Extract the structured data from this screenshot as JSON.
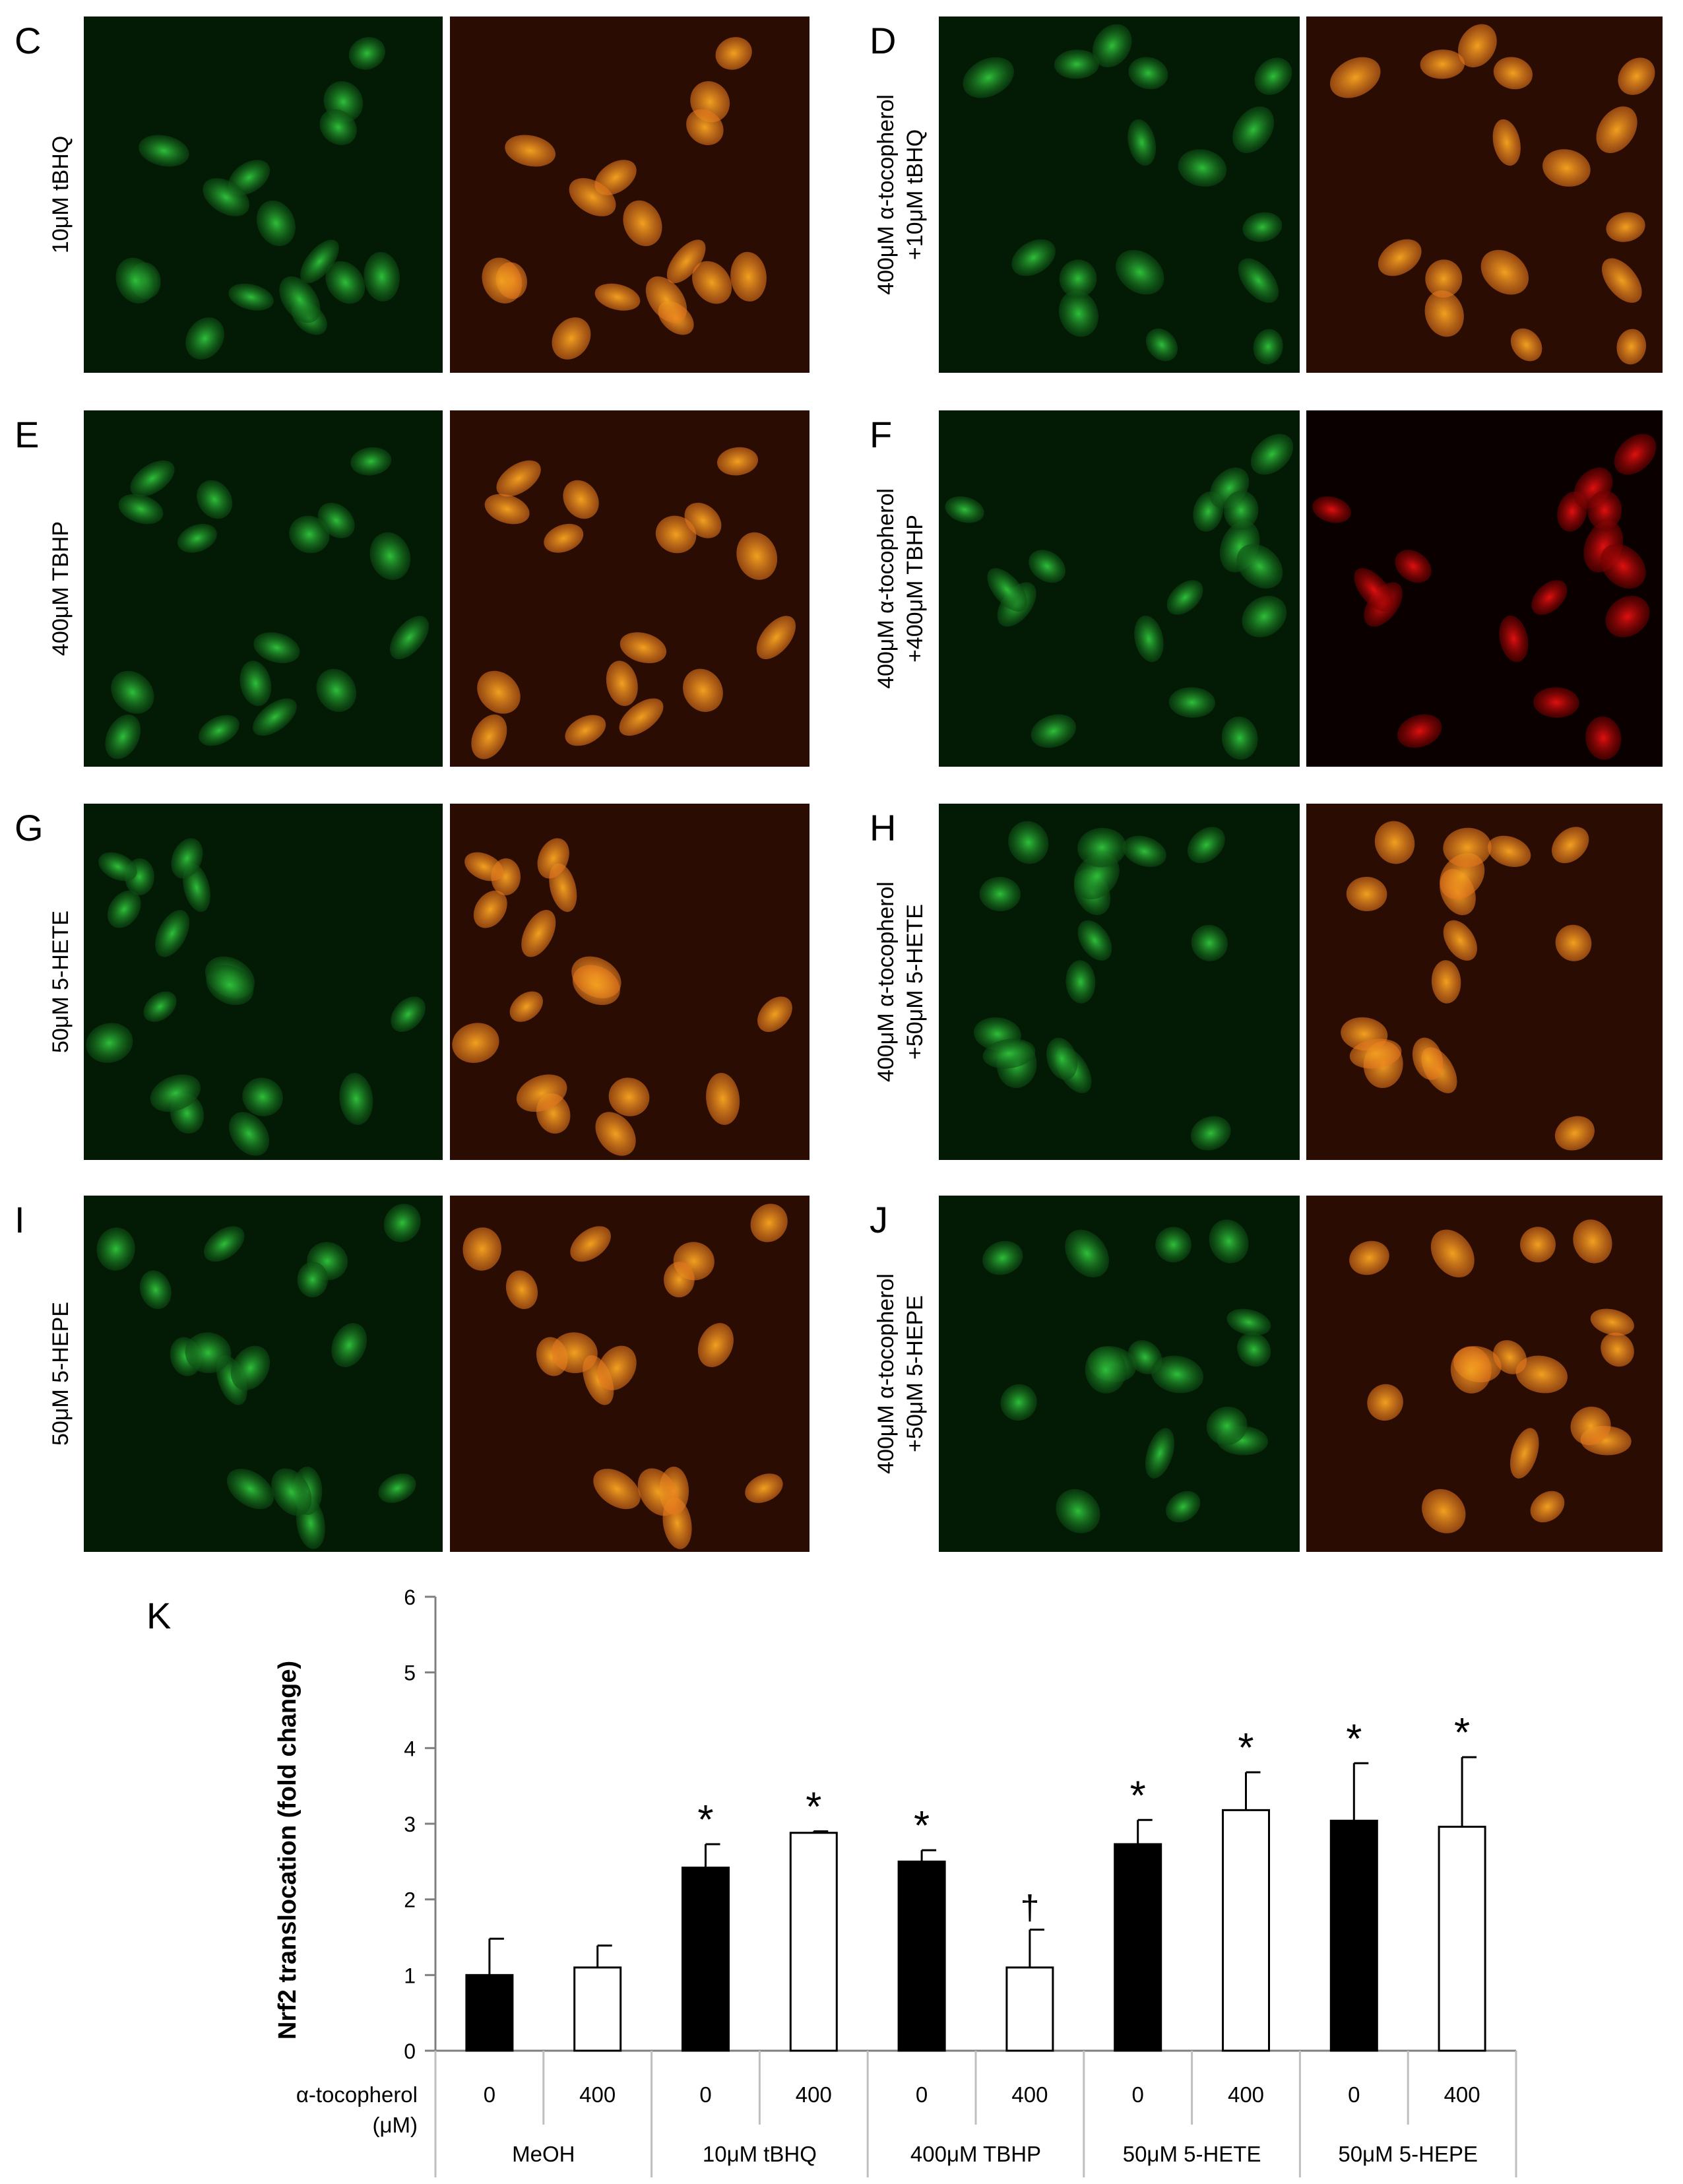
{
  "figure": {
    "rows": [
      {
        "left": {
          "letter": "C",
          "label_lines": [
            "10μM tBHQ"
          ]
        },
        "right": {
          "letter": "D",
          "label_lines": [
            "400μM α-tocopherol",
            "+10μM tBHQ"
          ]
        }
      },
      {
        "left": {
          "letter": "E",
          "label_lines": [
            "400μM TBHP"
          ]
        },
        "right": {
          "letter": "F",
          "label_lines": [
            "400μM α-tocopherol",
            "+400μM TBHP"
          ]
        }
      },
      {
        "left": {
          "letter": "G",
          "label_lines": [
            "50μM 5-HETE"
          ]
        },
        "right": {
          "letter": "H",
          "label_lines": [
            "400μM α-tocopherol",
            "+50μM 5-HETE"
          ]
        }
      },
      {
        "left": {
          "letter": "I",
          "label_lines": [
            "50μM 5-HEPE"
          ]
        },
        "right": {
          "letter": "J",
          "label_lines": [
            "400μM α-tocopherol",
            "+50μM 5-HEPE"
          ]
        }
      }
    ],
    "image_colors": {
      "green_channel": "#2fbf3a",
      "merge_orange": "#e8781e",
      "merge_red": "#e01010",
      "background": "#000000"
    }
  },
  "chart_data": {
    "type": "bar",
    "panel_letter": "K",
    "ylabel": "Nrf2 translocation (fold change)",
    "ylim": [
      0,
      6
    ],
    "yticks": [
      "0",
      "1",
      "2",
      "3",
      "4",
      "5",
      "6"
    ],
    "row_label": [
      "α-tocopherol",
      "(μM)"
    ],
    "groups": [
      "MeOH",
      "10μM tBHQ",
      "400μM TBHP",
      "50μM 5-HETE",
      "50μM 5-HEPE"
    ],
    "bars": [
      {
        "group": 0,
        "tocopherol": "0",
        "value": 1.0,
        "error": 0.48,
        "marker": "",
        "fill": "#000000"
      },
      {
        "group": 0,
        "tocopherol": "400",
        "value": 1.1,
        "error": 0.29,
        "marker": "",
        "fill": "#ffffff"
      },
      {
        "group": 1,
        "tocopherol": "0",
        "value": 2.42,
        "error": 0.31,
        "marker": "*",
        "fill": "#000000"
      },
      {
        "group": 1,
        "tocopherol": "400",
        "value": 2.88,
        "error": 0.02,
        "marker": "*",
        "fill": "#ffffff"
      },
      {
        "group": 2,
        "tocopherol": "0",
        "value": 2.5,
        "error": 0.15,
        "marker": "*",
        "fill": "#000000"
      },
      {
        "group": 2,
        "tocopherol": "400",
        "value": 1.1,
        "error": 0.5,
        "marker": "†",
        "fill": "#ffffff"
      },
      {
        "group": 3,
        "tocopherol": "0",
        "value": 2.73,
        "error": 0.32,
        "marker": "*",
        "fill": "#000000"
      },
      {
        "group": 3,
        "tocopherol": "400",
        "value": 3.18,
        "error": 0.5,
        "marker": "*",
        "fill": "#ffffff"
      },
      {
        "group": 4,
        "tocopherol": "0",
        "value": 3.04,
        "error": 0.76,
        "marker": "*",
        "fill": "#000000"
      },
      {
        "group": 4,
        "tocopherol": "400",
        "value": 2.96,
        "error": 0.92,
        "marker": "*",
        "fill": "#ffffff"
      }
    ],
    "grid": false,
    "legend": "none"
  }
}
